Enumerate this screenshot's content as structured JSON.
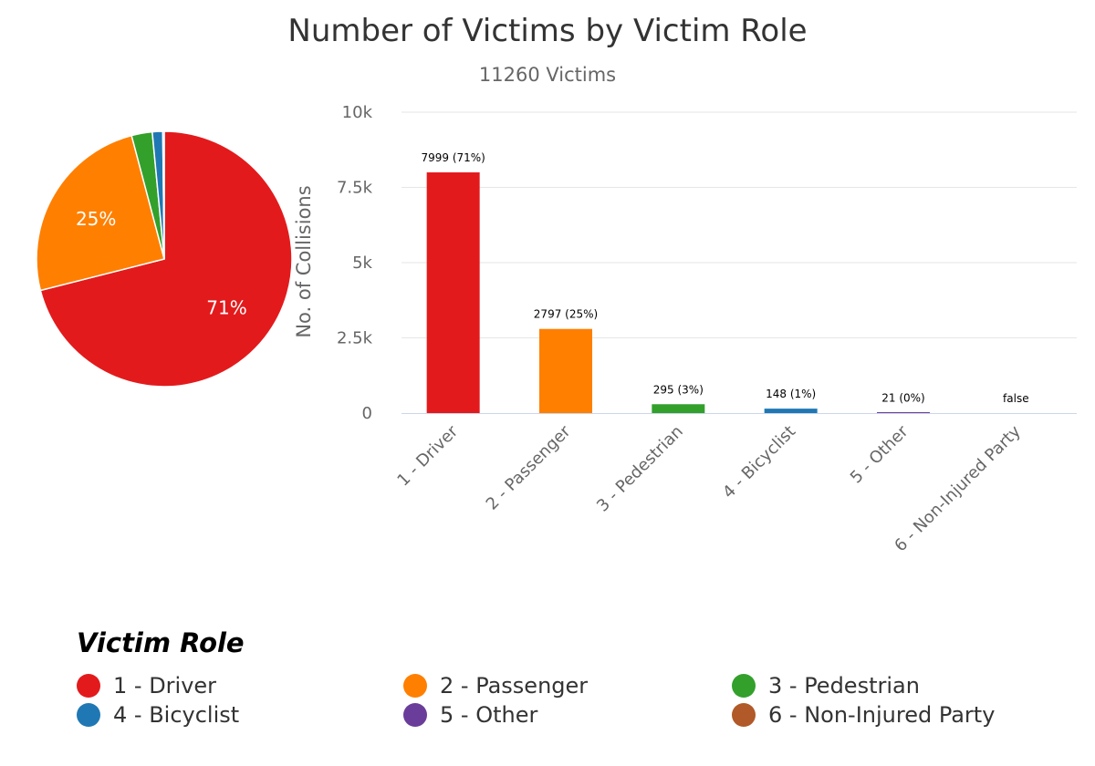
{
  "chart_data": {
    "type": "bar",
    "title": "Number of Victims by Victim Role",
    "subtitle": "11260 Victims",
    "ylabel": "No. of Collisions",
    "ylim": [
      0,
      10000
    ],
    "y_ticks": [
      {
        "value": 0,
        "label": "0"
      },
      {
        "value": 2500,
        "label": "2.5k"
      },
      {
        "value": 5000,
        "label": "5k"
      },
      {
        "value": 7500,
        "label": "7.5k"
      },
      {
        "value": 10000,
        "label": "10k"
      }
    ],
    "grid": true,
    "categories": [
      "1 - Driver",
      "2 - Passenger",
      "3 - Pedestrian",
      "4 - Bicyclist",
      "5 - Other",
      "6 - Non-Injured Party"
    ],
    "values": [
      7999,
      2797,
      295,
      148,
      21,
      0
    ],
    "data_labels": [
      "7999 (71%)",
      "2797 (25%)",
      "295 (3%)",
      "148 (1%)",
      "21 (0%)",
      "false"
    ],
    "colors": [
      "#e31a1c",
      "#ff7f00",
      "#33a02c",
      "#1f78b4",
      "#6a3d9a",
      "#b15928"
    ],
    "pie": {
      "type": "pie",
      "values": [
        7999,
        2797,
        295,
        148,
        21,
        0
      ],
      "slice_labels": [
        "71%",
        "25%",
        "",
        "",
        "",
        ""
      ]
    },
    "legend": {
      "title": "Victim Role",
      "position": "bottom",
      "items": [
        "1 - Driver",
        "2 - Passenger",
        "3 - Pedestrian",
        "4 - Bicyclist",
        "5 - Other",
        "6 - Non-Injured Party"
      ]
    }
  }
}
